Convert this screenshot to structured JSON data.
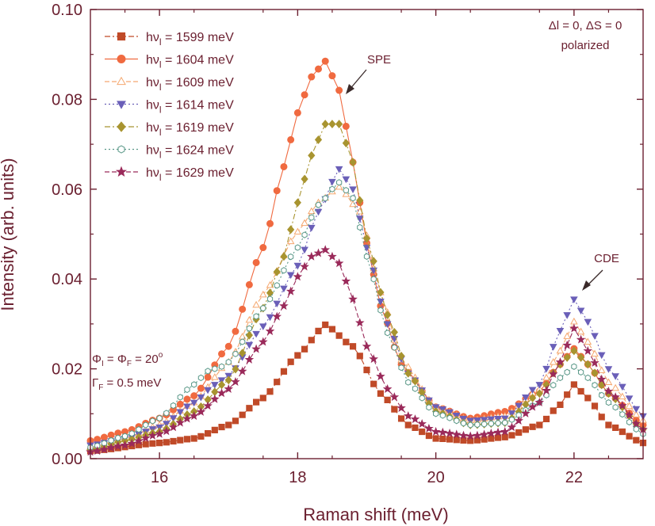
{
  "chart_data": {
    "type": "scatter",
    "title": "",
    "xlabel": "Raman shift (meV)",
    "ylabel": "Intensity (arb. units)",
    "xlim": [
      15,
      23
    ],
    "ylim": [
      0,
      0.1
    ],
    "x_ticks": [
      16,
      18,
      20,
      22
    ],
    "y_ticks": [
      0.0,
      0.02,
      0.04,
      0.06,
      0.08,
      0.1
    ],
    "x_tick_labels": [
      "16",
      "18",
      "20",
      "22"
    ],
    "y_tick_labels": [
      "0.00",
      "0.02",
      "0.04",
      "0.06",
      "0.08",
      "0.10"
    ],
    "legend_position": "top-left",
    "legend_prefix": "hν",
    "legend_subscript": "l",
    "legend_eq": " =  ",
    "legend_unit": " meV",
    "series": [
      {
        "name": "1599",
        "color": "#c04a28",
        "marker": "square",
        "filled": true,
        "line": "dashdot",
        "x": [
          15.0,
          16.0,
          16.5,
          17.0,
          17.5,
          18.0,
          18.4,
          18.8,
          19.2,
          19.6,
          20.0,
          20.5,
          21.0,
          21.5,
          21.8,
          22.0,
          22.2,
          22.5,
          23.0
        ],
        "y": [
          0.0017,
          0.0035,
          0.0045,
          0.0075,
          0.0135,
          0.023,
          0.0298,
          0.025,
          0.0145,
          0.0075,
          0.0045,
          0.004,
          0.0048,
          0.0075,
          0.012,
          0.0165,
          0.0135,
          0.0075,
          0.0035
        ]
      },
      {
        "name": "1604",
        "color": "#f06a40",
        "marker": "circle",
        "filled": true,
        "line": "solid",
        "x": [
          15.0,
          15.5,
          16.0,
          16.5,
          17.0,
          17.5,
          17.8,
          18.0,
          18.2,
          18.4,
          18.6,
          18.8,
          19.0,
          19.2,
          19.5,
          20.0,
          20.5,
          21.0,
          21.5,
          21.8,
          22.0,
          22.2,
          22.5,
          23.0
        ],
        "y": [
          0.004,
          0.006,
          0.009,
          0.014,
          0.025,
          0.047,
          0.065,
          0.077,
          0.085,
          0.0885,
          0.082,
          0.066,
          0.048,
          0.034,
          0.021,
          0.0115,
          0.009,
          0.0105,
          0.015,
          0.021,
          0.0245,
          0.021,
          0.0145,
          0.0075
        ]
      },
      {
        "name": "1609",
        "color": "#f5a870",
        "marker": "triangle-up",
        "filled": false,
        "line": "dash",
        "x": [
          15.0,
          15.5,
          16.0,
          16.5,
          17.0,
          17.5,
          18.0,
          18.3,
          18.6,
          18.9,
          19.2,
          19.5,
          20.0,
          20.5,
          21.0,
          21.5,
          21.8,
          22.0,
          22.2,
          22.5,
          23.0
        ],
        "y": [
          0.0025,
          0.0045,
          0.0075,
          0.0125,
          0.0215,
          0.0365,
          0.0505,
          0.057,
          0.0605,
          0.055,
          0.037,
          0.022,
          0.0115,
          0.0085,
          0.0095,
          0.0155,
          0.024,
          0.0305,
          0.026,
          0.017,
          0.0085
        ]
      },
      {
        "name": "1614",
        "color": "#6a5fb8",
        "marker": "triangle-down",
        "filled": true,
        "line": "dot",
        "x": [
          15.0,
          15.5,
          16.0,
          16.5,
          16.8,
          17.0,
          17.5,
          18.0,
          18.3,
          18.6,
          18.8,
          19.0,
          19.3,
          19.6,
          20.0,
          20.5,
          21.0,
          21.5,
          21.8,
          22.0,
          22.2,
          22.5,
          23.0
        ],
        "y": [
          0.003,
          0.0045,
          0.007,
          0.0125,
          0.0165,
          0.0185,
          0.0295,
          0.043,
          0.055,
          0.0645,
          0.06,
          0.047,
          0.03,
          0.019,
          0.0115,
          0.0085,
          0.009,
          0.0165,
          0.0285,
          0.0355,
          0.0305,
          0.02,
          0.0095
        ]
      },
      {
        "name": "1619",
        "color": "#a89430",
        "marker": "diamond",
        "filled": true,
        "line": "dashdot",
        "x": [
          15.0,
          15.5,
          16.0,
          16.5,
          17.0,
          17.5,
          17.8,
          18.0,
          18.2,
          18.4,
          18.6,
          18.8,
          19.0,
          19.3,
          19.6,
          20.0,
          20.5,
          21.0,
          21.5,
          21.8,
          22.0,
          22.2,
          22.5,
          23.0
        ],
        "y": [
          0.002,
          0.004,
          0.006,
          0.0105,
          0.0175,
          0.0335,
          0.045,
          0.057,
          0.0675,
          0.0745,
          0.0745,
          0.066,
          0.049,
          0.032,
          0.019,
          0.0105,
          0.0075,
          0.008,
          0.0145,
          0.021,
          0.024,
          0.021,
          0.0145,
          0.0065
        ]
      },
      {
        "name": "1624",
        "color": "#5a9888",
        "marker": "hexagon",
        "filled": false,
        "line": "dot",
        "x": [
          15.0,
          15.5,
          16.0,
          16.5,
          16.7,
          16.9,
          17.0,
          17.5,
          18.0,
          18.3,
          18.6,
          18.8,
          19.0,
          19.3,
          19.6,
          20.0,
          20.5,
          21.0,
          21.5,
          21.8,
          22.0,
          22.2,
          22.5,
          23.0
        ],
        "y": [
          0.0025,
          0.005,
          0.009,
          0.0165,
          0.0195,
          0.0205,
          0.0215,
          0.0335,
          0.047,
          0.0565,
          0.0615,
          0.058,
          0.045,
          0.028,
          0.017,
          0.01,
          0.0075,
          0.008,
          0.0125,
          0.018,
          0.0205,
          0.018,
          0.0125,
          0.0055
        ]
      },
      {
        "name": "1629",
        "color": "#9a2a5a",
        "marker": "star",
        "filled": true,
        "line": "dash",
        "x": [
          15.0,
          15.5,
          16.0,
          16.5,
          17.0,
          17.5,
          17.8,
          18.0,
          18.2,
          18.4,
          18.6,
          18.8,
          19.0,
          19.3,
          19.6,
          20.0,
          20.5,
          21.0,
          21.5,
          21.8,
          22.0,
          22.2,
          22.5,
          23.0
        ],
        "y": [
          0.0015,
          0.003,
          0.0055,
          0.0095,
          0.0155,
          0.026,
          0.034,
          0.0405,
          0.045,
          0.0465,
          0.0435,
          0.0355,
          0.025,
          0.0155,
          0.0095,
          0.006,
          0.005,
          0.006,
          0.0125,
          0.0215,
          0.029,
          0.024,
          0.015,
          0.0065
        ]
      }
    ],
    "annotations": [
      {
        "name": "spe",
        "text": "SPE",
        "x": 18.4,
        "y": 0.0885
      },
      {
        "name": "cde",
        "text": "CDE",
        "x": 22.0,
        "y": 0.0355
      }
    ]
  },
  "info": {
    "selection_line1": "Δl = 0, ΔS = 0",
    "selection_line2": "polarized",
    "angle_phi": "Φ",
    "angle_sub_i": "I",
    "angle_eq": " = Φ",
    "angle_sub_f": "F",
    "angle_value": " = 20",
    "angle_deg": "o",
    "gamma_symbol": "Γ",
    "gamma_sub": "F",
    "gamma_value": " = 0.5 meV"
  }
}
